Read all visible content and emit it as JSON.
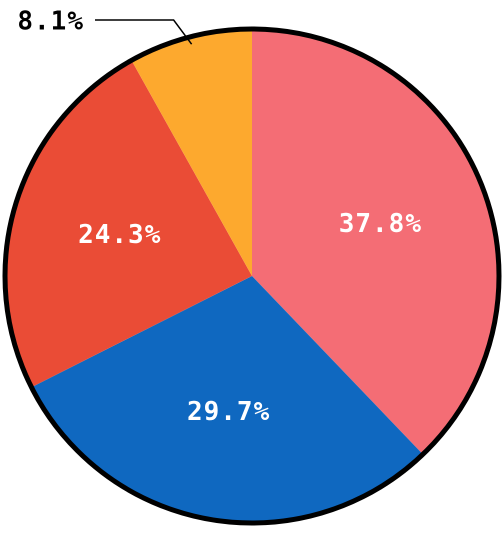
{
  "chart_data": {
    "type": "pie",
    "categories": [
      null,
      null,
      null,
      null
    ],
    "values": [
      37.8,
      29.7,
      24.3,
      8.1
    ],
    "value_labels": [
      "37.8%",
      "29.7%",
      "24.3%",
      "8.1%"
    ],
    "colors": [
      "#f46d75",
      "#0f68c0",
      "#ea4c36",
      "#fda92e"
    ]
  }
}
